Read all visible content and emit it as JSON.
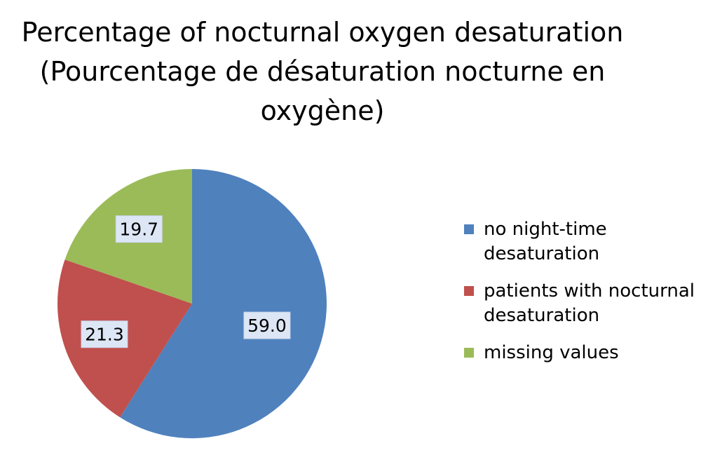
{
  "chart_data": {
    "type": "pie",
    "title_lines": [
      "Percentage of nocturnal oxygen desaturation",
      "(Pourcentage de désaturation nocturne en",
      "oxygène)"
    ],
    "categories": [
      "no night-time desaturation",
      "patients with nocturnal desaturation",
      "missing values"
    ],
    "legend_lines": [
      [
        "no night-time",
        "desaturation"
      ],
      [
        "patients with nocturnal",
        "desaturation"
      ],
      [
        "missing values"
      ]
    ],
    "values": [
      59.0,
      21.3,
      19.7
    ],
    "data_labels": [
      "59.0",
      "21.3",
      "19.7"
    ],
    "colors": [
      "#4f81bd",
      "#c0504d",
      "#9bbb59"
    ],
    "legend_placement": "right",
    "start_angle": "12 o'clock, clockwise"
  }
}
